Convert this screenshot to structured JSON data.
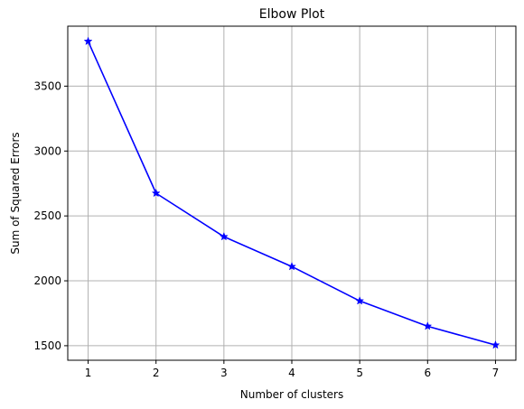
{
  "chart_data": {
    "type": "line",
    "title": "Elbow Plot",
    "xlabel": "Number of clusters",
    "ylabel": "Sum of Squared Errors",
    "x": [
      1,
      2,
      3,
      4,
      5,
      6,
      7
    ],
    "series": [
      {
        "values": [
          3845,
          2675,
          2340,
          2110,
          1845,
          1650,
          1505
        ],
        "color": "#0000ff",
        "marker": "star"
      }
    ],
    "xlim": [
      0.7,
      7.3
    ],
    "ylim": [
      1388,
      3962
    ],
    "xticks": [
      1,
      2,
      3,
      4,
      5,
      6,
      7
    ],
    "yticks": [
      1500,
      2000,
      2500,
      3000,
      3500
    ],
    "grid": true
  }
}
